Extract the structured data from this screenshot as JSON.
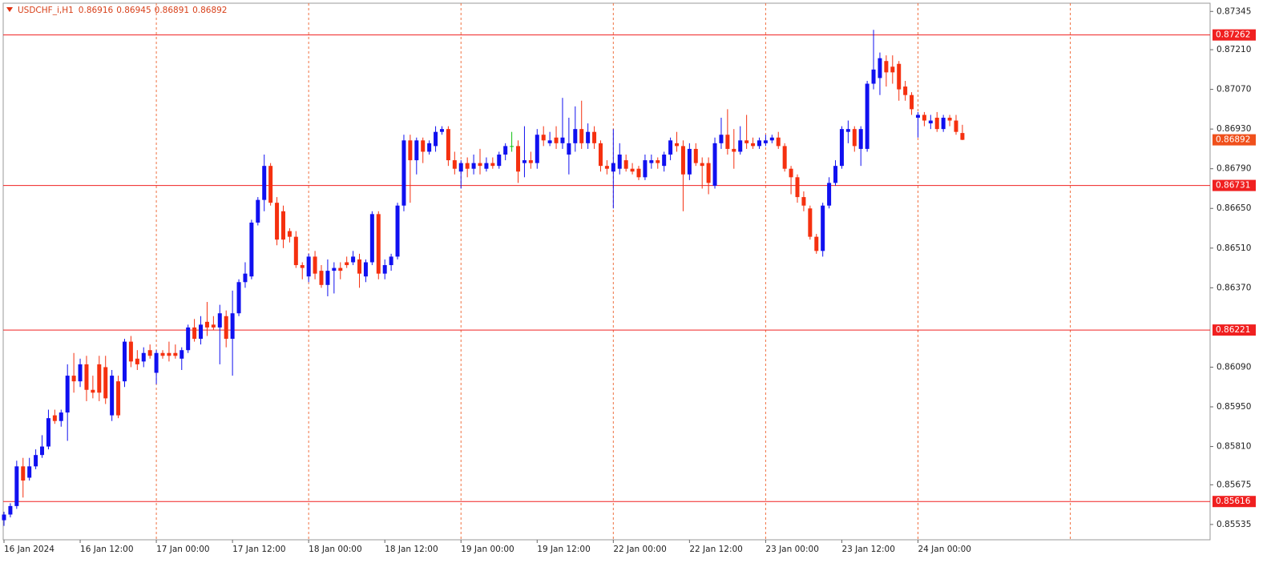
{
  "chart_data": {
    "type": "candlestick",
    "title": "USDCHF_i,H1",
    "categories": [
      "16 Jan 2024",
      null,
      null,
      null,
      null,
      null,
      null,
      null,
      null,
      null,
      null,
      null,
      "16 Jan 12:00",
      null,
      null,
      null,
      null,
      null,
      null,
      null,
      null,
      null,
      null,
      null,
      "17 Jan 00:00",
      null,
      null,
      null,
      null,
      null,
      null,
      null,
      null,
      null,
      null,
      null,
      "17 Jan 12:00",
      null,
      null,
      null,
      null,
      null,
      null,
      null,
      null,
      null,
      null,
      null,
      "18 Jan 00:00",
      null,
      null,
      null,
      null,
      null,
      null,
      null,
      null,
      null,
      null,
      null,
      "18 Jan 12:00",
      null,
      null,
      null,
      null,
      null,
      null,
      null,
      null,
      null,
      null,
      null,
      "19 Jan 00:00",
      null,
      null,
      null,
      null,
      null,
      null,
      null,
      null,
      null,
      null,
      null,
      "19 Jan 12:00",
      null,
      null,
      null,
      null,
      null,
      null,
      null,
      null,
      null,
      null,
      null,
      "22 Jan 00:00",
      null,
      null,
      null,
      null,
      null,
      null,
      null,
      null,
      null,
      null,
      null,
      "22 Jan 12:00",
      null,
      null,
      null,
      null,
      null,
      null,
      null,
      null,
      null,
      null,
      null,
      "23 Jan 00:00",
      null,
      null,
      null,
      null,
      null,
      null,
      null,
      null,
      null,
      null,
      null,
      "23 Jan 12:00",
      null,
      null,
      null,
      null,
      null,
      null,
      null,
      null,
      null,
      null,
      null,
      "24 Jan 00:00",
      null,
      null,
      null,
      null,
      null,
      null,
      null
    ],
    "open": [
      0.8555,
      0.8557,
      0.856,
      0.8574,
      0.857,
      0.8574,
      0.8578,
      0.8581,
      0.8592,
      0.859,
      0.8593,
      0.8606,
      0.8604,
      0.861,
      0.8601,
      0.861,
      0.8609,
      0.8592,
      0.8604,
      0.8604,
      0.8618,
      0.8612,
      0.8611,
      0.8615,
      0.8607,
      0.8614,
      0.8614,
      0.8614,
      0.8612,
      0.8615,
      0.8623,
      0.8619,
      0.8625,
      0.8624,
      0.8623,
      0.8627,
      0.8619,
      0.8628,
      0.8639,
      0.8641,
      0.866,
      0.8668,
      0.868,
      0.8667,
      0.8664,
      0.8657,
      0.8655,
      0.8645,
      0.8641,
      0.8648,
      0.8643,
      0.8638,
      0.8643,
      0.8644,
      0.8646,
      0.8646,
      0.8647,
      0.8641,
      0.8646,
      0.8663,
      0.8642,
      0.8645,
      0.8648,
      0.8666,
      0.8689,
      0.8682,
      0.8689,
      0.8685,
      0.8687,
      0.8692,
      0.8693,
      0.8682,
      0.8678,
      0.8681,
      0.8679,
      0.8681,
      0.8679,
      0.8681,
      0.868,
      0.8684,
      0.8687,
      0.8687,
      0.8681,
      0.8682,
      0.8681,
      0.8691,
      0.8688,
      0.869,
      0.8688,
      0.8684,
      0.8688,
      0.8693,
      0.8688,
      0.8692,
      0.8688,
      0.868,
      0.8678,
      0.8679,
      0.8682,
      0.8679,
      0.8679,
      0.8676,
      0.8681,
      0.8682,
      0.868,
      0.8684,
      0.8688,
      0.8687,
      0.8677,
      0.8686,
      0.8681,
      0.8681,
      0.8673,
      0.8688,
      0.8691,
      0.8686,
      0.8685,
      0.8689,
      0.8688,
      0.8687,
      0.8688,
      0.8689,
      0.869,
      0.8687,
      0.8679,
      0.8676,
      0.8669,
      0.8665,
      0.8655,
      0.865,
      0.8666,
      0.8674,
      0.868,
      0.8692,
      0.8693,
      0.8686,
      0.8686,
      0.8709,
      0.8711,
      0.8717,
      0.8715,
      0.8716,
      0.8708,
      0.8705,
      0.8697,
      0.8698,
      0.8695,
      0.8697,
      0.8693,
      0.8697,
      0.8696,
      0.86916
    ],
    "high": [
      0.8558,
      0.8561,
      0.8576,
      0.8577,
      0.8577,
      0.858,
      0.8585,
      0.8594,
      0.8594,
      0.8594,
      0.861,
      0.8614,
      0.8612,
      0.8613,
      0.8606,
      0.8613,
      0.8613,
      0.8608,
      0.8606,
      0.8619,
      0.862,
      0.8615,
      0.8616,
      0.8617,
      0.8615,
      0.8615,
      0.8618,
      0.8617,
      0.8616,
      0.8624,
      0.8626,
      0.8627,
      0.8632,
      0.8627,
      0.8631,
      0.8629,
      0.8636,
      0.864,
      0.8646,
      0.8661,
      0.8669,
      0.8684,
      0.8681,
      0.8669,
      0.8666,
      0.8658,
      0.8657,
      0.8646,
      0.8649,
      0.865,
      0.8645,
      0.8647,
      0.8646,
      0.8646,
      0.8648,
      0.865,
      0.8649,
      0.8647,
      0.8664,
      0.8664,
      0.8647,
      0.8649,
      0.8667,
      0.8691,
      0.8691,
      0.869,
      0.869,
      0.8689,
      0.8694,
      0.8694,
      0.8694,
      0.8685,
      0.8682,
      0.8683,
      0.8684,
      0.8686,
      0.8683,
      0.8683,
      0.8685,
      0.8688,
      0.8692,
      0.8689,
      0.8694,
      0.8685,
      0.8693,
      0.8694,
      0.8692,
      0.8694,
      0.8704,
      0.8697,
      0.8701,
      0.8703,
      0.8695,
      0.8694,
      0.8689,
      0.8682,
      0.8693,
      0.8688,
      0.8684,
      0.8681,
      0.868,
      0.8684,
      0.8684,
      0.8683,
      0.8685,
      0.869,
      0.8692,
      0.8689,
      0.8688,
      0.8688,
      0.8683,
      0.8683,
      0.869,
      0.8697,
      0.87,
      0.8693,
      0.8694,
      0.8698,
      0.869,
      0.869,
      0.8691,
      0.8691,
      0.8692,
      0.8688,
      0.868,
      0.8677,
      0.8671,
      0.8666,
      0.8656,
      0.8667,
      0.8676,
      0.8682,
      0.8694,
      0.8696,
      0.8694,
      0.8694,
      0.871,
      0.8728,
      0.872,
      0.8719,
      0.8719,
      0.8717,
      0.871,
      0.8706,
      0.8699,
      0.8699,
      0.8698,
      0.8699,
      0.8698,
      0.8698,
      0.8698,
      0.86945
    ],
    "low": [
      0.8553,
      0.8556,
      0.8559,
      0.8563,
      0.8569,
      0.8573,
      0.8577,
      0.858,
      0.8589,
      0.8588,
      0.8583,
      0.86,
      0.8602,
      0.8597,
      0.8598,
      0.8597,
      0.8596,
      0.859,
      0.8591,
      0.8602,
      0.8609,
      0.8608,
      0.8609,
      0.8612,
      0.8603,
      0.8612,
      0.8611,
      0.8612,
      0.8608,
      0.8614,
      0.8618,
      0.8617,
      0.862,
      0.8622,
      0.861,
      0.8616,
      0.8606,
      0.8627,
      0.8637,
      0.864,
      0.8659,
      0.8664,
      0.8666,
      0.8652,
      0.8651,
      0.8653,
      0.8644,
      0.864,
      0.8639,
      0.864,
      0.8637,
      0.8634,
      0.8635,
      0.864,
      0.8644,
      0.8645,
      0.8637,
      0.8639,
      0.8645,
      0.864,
      0.864,
      0.8643,
      0.8647,
      0.8664,
      0.8667,
      0.8677,
      0.8681,
      0.8684,
      0.8685,
      0.8691,
      0.868,
      0.8677,
      0.8672,
      0.8676,
      0.8677,
      0.8677,
      0.8678,
      0.8679,
      0.8679,
      0.8682,
      0.8685,
      0.8674,
      0.8676,
      0.8679,
      0.8679,
      0.8687,
      0.8687,
      0.8686,
      0.8686,
      0.8677,
      0.8685,
      0.8686,
      0.8686,
      0.8686,
      0.8678,
      0.8677,
      0.8665,
      0.8677,
      0.8678,
      0.8677,
      0.8675,
      0.8675,
      0.8679,
      0.8679,
      0.8678,
      0.8682,
      0.8685,
      0.8664,
      0.8675,
      0.868,
      0.8672,
      0.867,
      0.8672,
      0.8686,
      0.8684,
      0.8679,
      0.8684,
      0.8686,
      0.8686,
      0.8686,
      0.8687,
      0.8688,
      0.8686,
      0.8678,
      0.867,
      0.8667,
      0.8664,
      0.8654,
      0.8649,
      0.8648,
      0.8665,
      0.8673,
      0.8679,
      0.8688,
      0.8685,
      0.868,
      0.8685,
      0.8707,
      0.8705,
      0.8708,
      0.8709,
      0.8703,
      0.8703,
      0.8698,
      0.869,
      0.8694,
      0.8693,
      0.8692,
      0.8692,
      0.8694,
      0.8691,
      0.86891
    ],
    "close": [
      0.8557,
      0.856,
      0.8574,
      0.8569,
      0.8574,
      0.8578,
      0.8581,
      0.8591,
      0.859,
      0.8593,
      0.8606,
      0.8604,
      0.861,
      0.8601,
      0.86,
      0.86,
      0.8598,
      0.8606,
      0.8592,
      0.8618,
      0.8611,
      0.861,
      0.8614,
      0.8613,
      0.8614,
      0.8613,
      0.8613,
      0.8613,
      0.8615,
      0.8623,
      0.8619,
      0.8624,
      0.8623,
      0.8623,
      0.8628,
      0.8619,
      0.8628,
      0.8639,
      0.8642,
      0.866,
      0.8668,
      0.868,
      0.8667,
      0.8654,
      0.8654,
      0.8655,
      0.8645,
      0.8644,
      0.8648,
      0.8642,
      0.8638,
      0.8643,
      0.8644,
      0.8643,
      0.8645,
      0.8648,
      0.8642,
      0.8646,
      0.8663,
      0.8642,
      0.8645,
      0.8648,
      0.8666,
      0.8689,
      0.8682,
      0.8689,
      0.8685,
      0.8688,
      0.8692,
      0.8693,
      0.8682,
      0.8679,
      0.8681,
      0.8679,
      0.8681,
      0.868,
      0.8681,
      0.868,
      0.8684,
      0.8687,
      0.8687,
      0.8678,
      0.8682,
      0.8681,
      0.8691,
      0.8689,
      0.8689,
      0.8688,
      0.869,
      0.8688,
      0.8693,
      0.8688,
      0.8692,
      0.8688,
      0.868,
      0.8679,
      0.8681,
      0.8684,
      0.8679,
      0.8678,
      0.8676,
      0.8682,
      0.8682,
      0.8681,
      0.8684,
      0.8689,
      0.8687,
      0.8677,
      0.8686,
      0.8681,
      0.868,
      0.8674,
      0.8688,
      0.8691,
      0.8686,
      0.8685,
      0.8689,
      0.8688,
      0.8687,
      0.8689,
      0.8689,
      0.869,
      0.8687,
      0.8679,
      0.8676,
      0.8669,
      0.8666,
      0.8655,
      0.865,
      0.8666,
      0.8674,
      0.868,
      0.8693,
      0.8693,
      0.8687,
      0.8693,
      0.8709,
      0.8714,
      0.8718,
      0.8713,
      0.8713,
      0.8707,
      0.8705,
      0.87,
      0.8698,
      0.8696,
      0.8696,
      0.8693,
      0.8697,
      0.8696,
      0.8692,
      0.86892
    ],
    "up_color": "#1010f0",
    "down_color": "#f5300f",
    "doji_color": "#10c010",
    "ylim": [
      0.85481,
      0.87374
    ],
    "yticks": [
      0.87345,
      {
        "value": 0.8721,
        "label": "0.87210"
      },
      {
        "value": 0.8707,
        "label": "0.87070"
      },
      {
        "value": 0.8693,
        "label": "0.86930"
      },
      {
        "value": 0.8679,
        "label": "0.86790"
      },
      {
        "value": 0.8665,
        "label": "0.86650"
      },
      {
        "value": 0.8651,
        "label": "0.86510"
      },
      {
        "value": 0.8637,
        "label": "0.86370"
      },
      {
        "value": 0.8609,
        "label": "0.86090"
      },
      {
        "value": 0.8595,
        "label": "0.85950"
      },
      {
        "value": 0.8581,
        "label": "0.85810"
      },
      0.85675,
      0.85535
    ],
    "levels": [
      0.87262,
      0.86731,
      0.86221,
      0.85616
    ],
    "level_color": "#f02020",
    "price_label_color": "#f0501c",
    "grid_color": "#f07040"
  }
}
